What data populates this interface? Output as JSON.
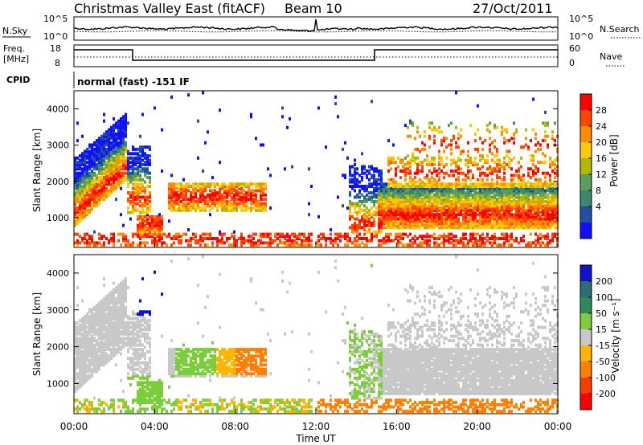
{
  "header": {
    "site": "Christmas Valley East (fitACF)",
    "beam": "Beam 10",
    "date": "27/Oct/2011"
  },
  "top_panel": {
    "left_label": "N.Sky",
    "right_label": "N.Search",
    "left_ticks": [
      "10^5",
      "10^0"
    ],
    "right_ticks": [
      "10^5",
      "10^0"
    ]
  },
  "freq_panel": {
    "left_label_line1": "Freq.",
    "left_label_line2": "[MHz]",
    "right_label": "Nave",
    "left_ticks": [
      "18",
      "8"
    ],
    "right_ticks": [
      "60",
      "0"
    ]
  },
  "cpid": {
    "label": "CPID",
    "value": "normal (fast) -151 IF"
  },
  "chart_data": [
    {
      "type": "heatmap",
      "name": "power",
      "ylabel": "Slant Range [km]",
      "xlabel": "Time UT",
      "ylim": [
        180,
        4500
      ],
      "yticks": [
        "1000",
        "2000",
        "3000",
        "4000"
      ],
      "xticks": [
        "00:00",
        "04:00",
        "08:00",
        "12:00",
        "16:00",
        "20:00",
        "00:00"
      ],
      "colorbar": {
        "label": "Power [dB]",
        "ticks": [
          "28",
          "24",
          "20",
          "16",
          "12",
          "8",
          "4"
        ],
        "colors": [
          "#ff0000",
          "#ff4500",
          "#ff8c00",
          "#ffc800",
          "#b5b800",
          "#5aa05a",
          "#3c8a6e",
          "#2050a0",
          "#1010ff"
        ]
      }
    },
    {
      "type": "heatmap",
      "name": "velocity",
      "ylabel": "Slant Range [km]",
      "xlabel": "Time UT",
      "ylim": [
        180,
        4500
      ],
      "yticks": [
        "1000",
        "2000",
        "3000",
        "4000"
      ],
      "xticks": [
        "00:00",
        "04:00",
        "08:00",
        "12:00",
        "16:00",
        "20:00",
        "00:00"
      ],
      "colorbar": {
        "label": "Velocity [m s⁻¹]",
        "ticks": [
          "200",
          "100",
          "50",
          "15",
          "-15",
          "-50",
          "-100",
          "-200"
        ],
        "colors": [
          "#1010d0",
          "#2a6e7a",
          "#2e8b57",
          "#7ccd3c",
          "#c8c8c8",
          "#ffb400",
          "#ff7f00",
          "#ff3c00",
          "#ff0000"
        ]
      }
    }
  ]
}
